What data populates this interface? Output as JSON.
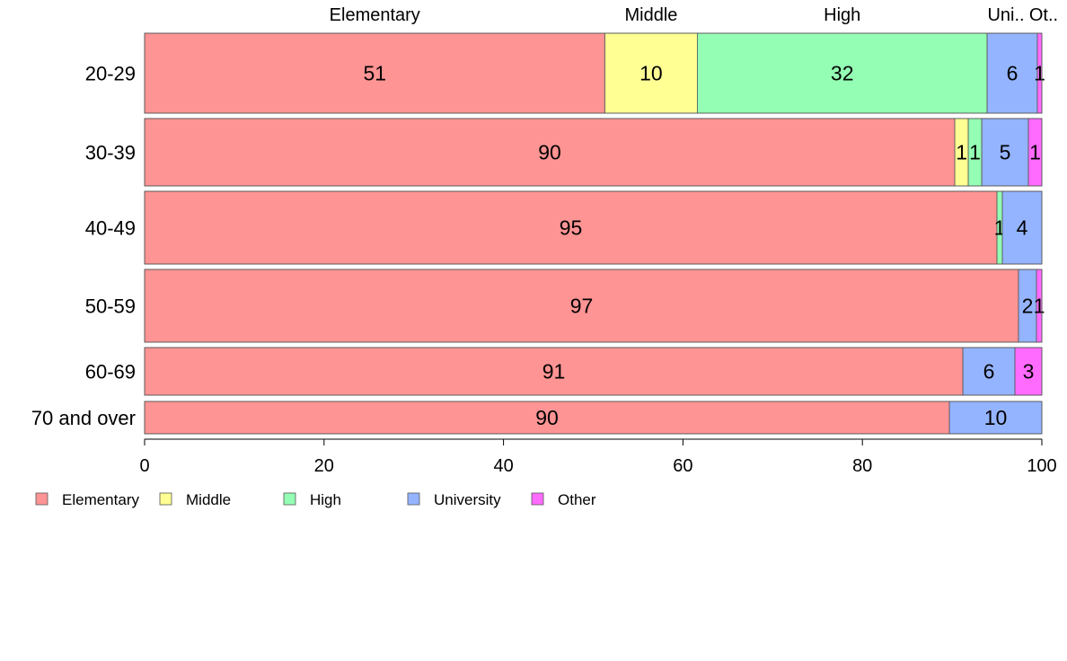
{
  "chart_data": {
    "type": "bar",
    "orientation": "horizontal",
    "stacked": true,
    "normalized_percent": true,
    "categories": [
      "20-29",
      "30-39",
      "40-49",
      "50-59",
      "60-69",
      "70 and over"
    ],
    "series": [
      {
        "name": "Elementary",
        "color": "#ff9494",
        "values": [
          51.3,
          90.3,
          95.0,
          97.4,
          91.2,
          89.7
        ]
      },
      {
        "name": "Middle",
        "color": "#ffff94",
        "values": [
          10.3,
          1.5,
          0.0,
          0.0,
          0.0,
          0.0
        ]
      },
      {
        "name": "High",
        "color": "#94ffb4",
        "values": [
          32.3,
          1.5,
          0.6,
          0.0,
          0.0,
          0.0
        ]
      },
      {
        "name": "University",
        "color": "#94b4ff",
        "values": [
          5.6,
          5.2,
          4.4,
          2.0,
          5.8,
          10.3
        ]
      },
      {
        "name": "Other",
        "color": "#ff6bff",
        "values": [
          0.5,
          1.5,
          0.0,
          0.6,
          3.0,
          0.0
        ]
      }
    ],
    "segment_labels": [
      [
        "51",
        "10",
        "32",
        "6",
        "1"
      ],
      [
        "90",
        "1",
        "1",
        "5",
        "1"
      ],
      [
        "95",
        "",
        "1",
        "4",
        ""
      ],
      [
        "97",
        "",
        "",
        "2",
        "1"
      ],
      [
        "91",
        "",
        "",
        "6",
        "3"
      ],
      [
        "90",
        "",
        "",
        "10",
        ""
      ]
    ],
    "top_labels": [
      "Elementary",
      "Middle",
      "High",
      "Uni..",
      "Ot.."
    ],
    "x_ticks": [
      "0",
      "20",
      "40",
      "60",
      "80",
      "100"
    ],
    "xlim": [
      0,
      100
    ],
    "title": "",
    "xlabel": "",
    "ylabel": "",
    "grid": false,
    "legend": {
      "position": "bottom-left",
      "entries": [
        "Elementary",
        "Middle",
        "High",
        "University",
        "Other"
      ]
    }
  }
}
